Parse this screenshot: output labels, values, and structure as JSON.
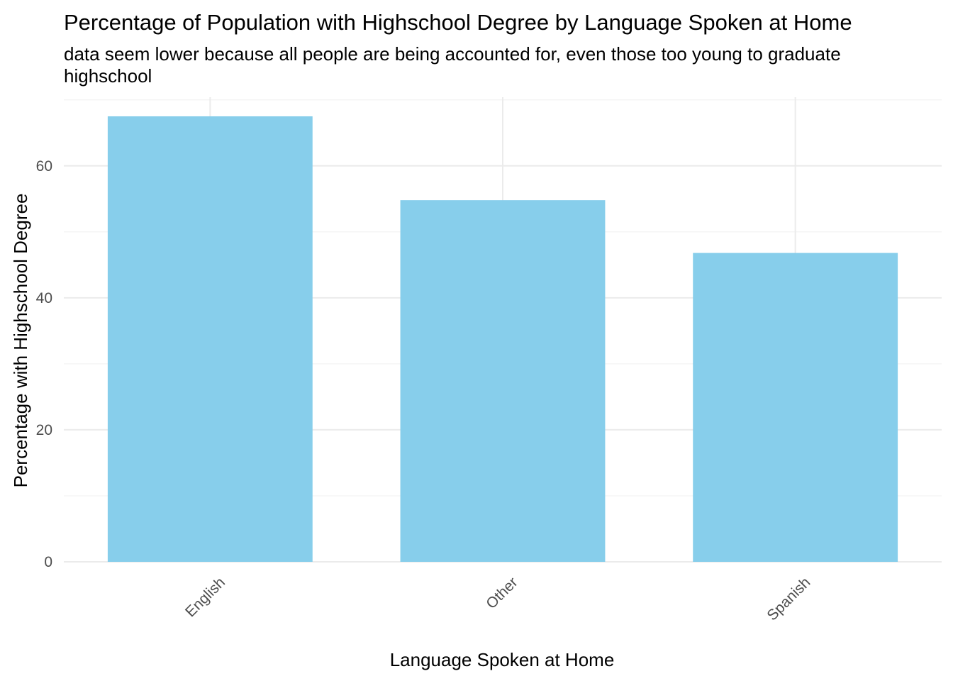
{
  "chart_data": {
    "type": "bar",
    "title": "Percentage of Population with Highschool Degree by Language Spoken at Home",
    "subtitle_lines": [
      "data seem lower because all people are being accounted for, even those too young to graduate",
      "highschool"
    ],
    "xlabel": "Language Spoken at Home",
    "ylabel": "Percentage with Highschool Degree",
    "categories": [
      "English",
      "Other",
      "Spanish"
    ],
    "values": [
      67.5,
      54.8,
      46.8
    ],
    "ylim": [
      0,
      70.4
    ],
    "yticks": [
      0,
      20,
      40,
      60
    ],
    "ytick_labels": [
      "0",
      "20",
      "40",
      "60"
    ],
    "grid": true,
    "legend": "none",
    "bar_color": "#87CEEB",
    "grid_major_color": "#EBEBEB",
    "grid_minor_color": "#F3F3F3",
    "tick_label_color": "#4D4D4D"
  }
}
